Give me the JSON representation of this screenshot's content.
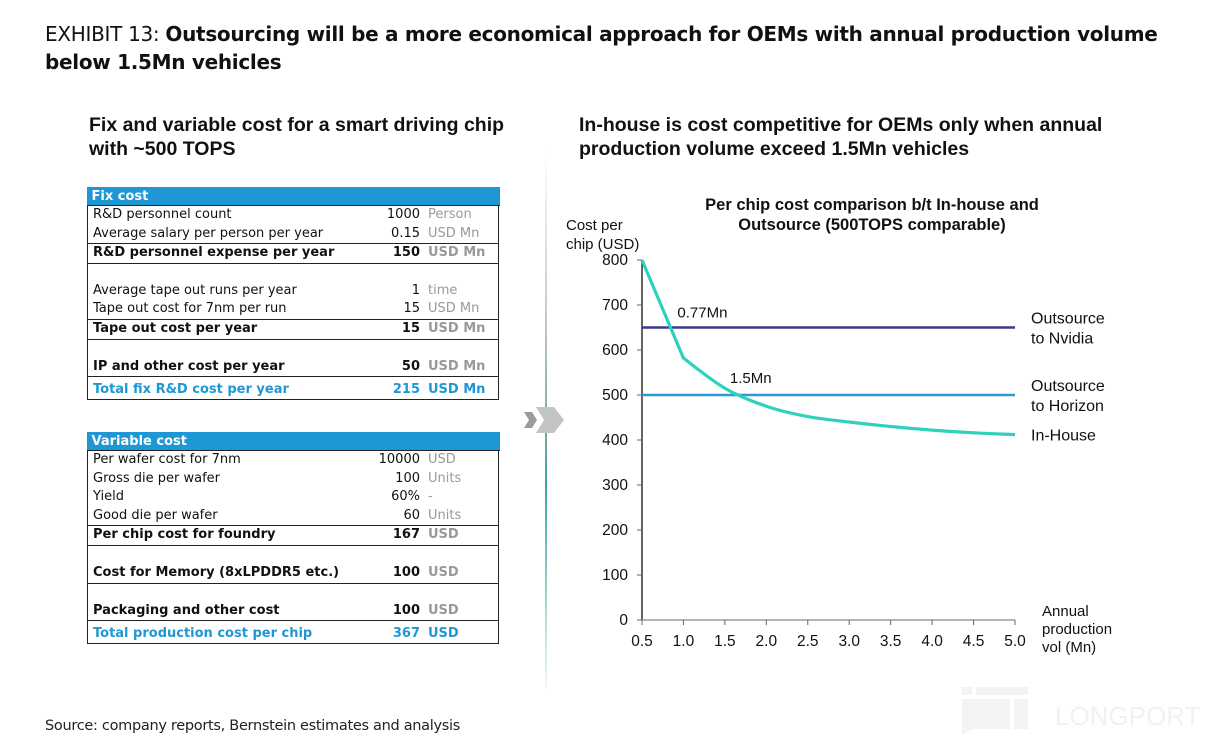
{
  "exhibit": {
    "lead": "EXHIBIT 13: ",
    "title": "Outsourcing will be a more economical approach for OEMs with annual production volume below 1.5Mn vehicles"
  },
  "left_panel": {
    "subtitle": "Fix and variable cost for a smart driving chip with ~500 TOPS",
    "fix_cost": {
      "header": "Fix cost",
      "rows": [
        {
          "label": "R&D personnel count",
          "value": "1000",
          "unit": "Person",
          "style": "normal"
        },
        {
          "label": "Average salary per person per year",
          "value": "0.15",
          "unit": "USD Mn",
          "style": "normal"
        },
        {
          "label": "R&D personnel expense per year",
          "value": "150",
          "unit": "USD Mn",
          "style": "bold"
        },
        {
          "label": "Average tape out runs per year",
          "value": "1",
          "unit": "time",
          "style": "normal"
        },
        {
          "label": "Tape out cost for 7nm per run",
          "value": "15",
          "unit": "USD Mn",
          "style": "normal"
        },
        {
          "label": "Tape out cost per year",
          "value": "15",
          "unit": "USD Mn",
          "style": "bold"
        },
        {
          "label": "IP and other cost per year",
          "value": "50",
          "unit": "USD Mn",
          "style": "bold"
        },
        {
          "label": "Total fix R&D cost per year",
          "value": "215",
          "unit": "USD Mn",
          "style": "total"
        }
      ]
    },
    "variable_cost": {
      "header": "Variable cost",
      "rows": [
        {
          "label": "Per wafer cost for 7nm",
          "value": "10000",
          "unit": "USD",
          "style": "normal"
        },
        {
          "label": "Gross die per wafer",
          "value": "100",
          "unit": "Units",
          "style": "normal"
        },
        {
          "label": "Yield",
          "value": "60%",
          "unit": "-",
          "style": "normal"
        },
        {
          "label": "Good die per wafer",
          "value": "60",
          "unit": "Units",
          "style": "normal"
        },
        {
          "label": "Per chip cost for foundry",
          "value": "167",
          "unit": "USD",
          "style": "bold"
        },
        {
          "label": "Cost for Memory (8xLPDDR5 etc.)",
          "value": "100",
          "unit": "USD",
          "style": "bold"
        },
        {
          "label": "Packaging and other cost",
          "value": "100",
          "unit": "USD",
          "style": "bold"
        },
        {
          "label": "Total production cost per chip",
          "value": "367",
          "unit": "USD",
          "style": "total"
        }
      ]
    }
  },
  "right_panel": {
    "subtitle": "In-house is cost competitive for OEMs only when annual production volume exceed 1.5Mn vehicles"
  },
  "chart_data": {
    "type": "line",
    "title": "Per chip cost comparison b/t In-house and Outsource (500TOPS comparable)",
    "ylabel": "Cost per chip (USD)",
    "xlabel": "Annual production vol (Mn)",
    "xlim": [
      0.5,
      5.0
    ],
    "ylim": [
      0,
      800
    ],
    "x_ticks": [
      "0.5",
      "1.0",
      "1.5",
      "2.0",
      "2.5",
      "3.0",
      "3.5",
      "4.0",
      "4.5",
      "5.0"
    ],
    "y_ticks": [
      "0",
      "100",
      "200",
      "300",
      "400",
      "500",
      "600",
      "700",
      "800"
    ],
    "grid": false,
    "legend": "right",
    "x": [
      0.5,
      1.0,
      1.5,
      2.0,
      2.5,
      3.0,
      3.5,
      4.0,
      4.5,
      5.0
    ],
    "series": [
      {
        "name": "Outsource to Nvidia",
        "color": "#3b3a86",
        "values": [
          650,
          650,
          650,
          650,
          650,
          650,
          650,
          650,
          650,
          650
        ]
      },
      {
        "name": "Outsource to Horizon",
        "color": "#2c9ad6",
        "values": [
          500,
          500,
          500,
          500,
          500,
          500,
          500,
          500,
          500,
          500
        ]
      },
      {
        "name": "In-House",
        "color": "#2fd0bd",
        "values": [
          800,
          582,
          515,
          475,
          452,
          440,
          430,
          422,
          416,
          412
        ]
      }
    ],
    "legend_labels": {
      "nvidia": [
        "Outsource",
        "to Nvidia"
      ],
      "horizon": [
        "Outsource",
        "to Horizon"
      ],
      "inhouse": [
        "In-House"
      ]
    },
    "annotations": [
      {
        "text": "0.77Mn",
        "x": 0.77,
        "y": 650
      },
      {
        "text": "1.5Mn",
        "x": 1.5,
        "y": 500
      }
    ]
  },
  "source": "Source: company reports, Bernstein estimates and analysis",
  "watermark": "LONGPORT"
}
